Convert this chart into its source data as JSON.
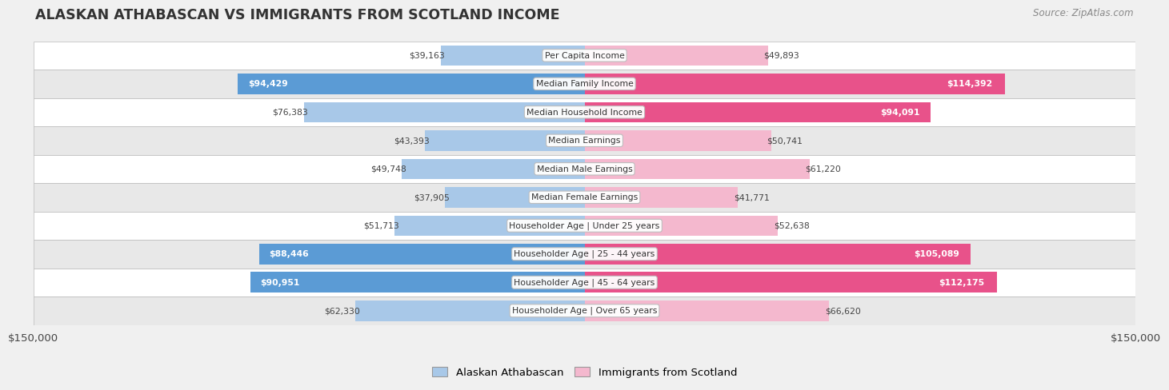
{
  "title": "ALASKAN ATHABASCAN VS IMMIGRANTS FROM SCOTLAND INCOME",
  "source": "Source: ZipAtlas.com",
  "categories": [
    "Per Capita Income",
    "Median Family Income",
    "Median Household Income",
    "Median Earnings",
    "Median Male Earnings",
    "Median Female Earnings",
    "Householder Age | Under 25 years",
    "Householder Age | 25 - 44 years",
    "Householder Age | 45 - 64 years",
    "Householder Age | Over 65 years"
  ],
  "left_values": [
    39163,
    94429,
    76383,
    43393,
    49748,
    37905,
    51713,
    88446,
    90951,
    62330
  ],
  "right_values": [
    49893,
    114392,
    94091,
    50741,
    61220,
    41771,
    52638,
    105089,
    112175,
    66620
  ],
  "left_labels": [
    "$39,163",
    "$94,429",
    "$76,383",
    "$43,393",
    "$49,748",
    "$37,905",
    "$51,713",
    "$88,446",
    "$90,951",
    "$62,330"
  ],
  "right_labels": [
    "$49,893",
    "$114,392",
    "$94,091",
    "$50,741",
    "$61,220",
    "$41,771",
    "$52,638",
    "$105,089",
    "$112,175",
    "$66,620"
  ],
  "left_color_light": "#a8c8e8",
  "left_color_dark": "#5b9bd5",
  "right_color_light": "#f4b8ce",
  "right_color_dark": "#e8528a",
  "max_value": 150000,
  "legend_left": "Alaskan Athabascan",
  "legend_right": "Immigrants from Scotland",
  "left_label_inside": [
    false,
    true,
    false,
    false,
    false,
    false,
    false,
    true,
    true,
    false
  ],
  "right_label_inside": [
    false,
    true,
    true,
    false,
    false,
    false,
    false,
    true,
    true,
    false
  ],
  "background_color": "#f0f0f0",
  "row_bg_even": "#ffffff",
  "row_bg_odd": "#e8e8e8",
  "title_color": "#333333",
  "label_color_outside": "#444444",
  "label_color_inside": "#ffffff"
}
